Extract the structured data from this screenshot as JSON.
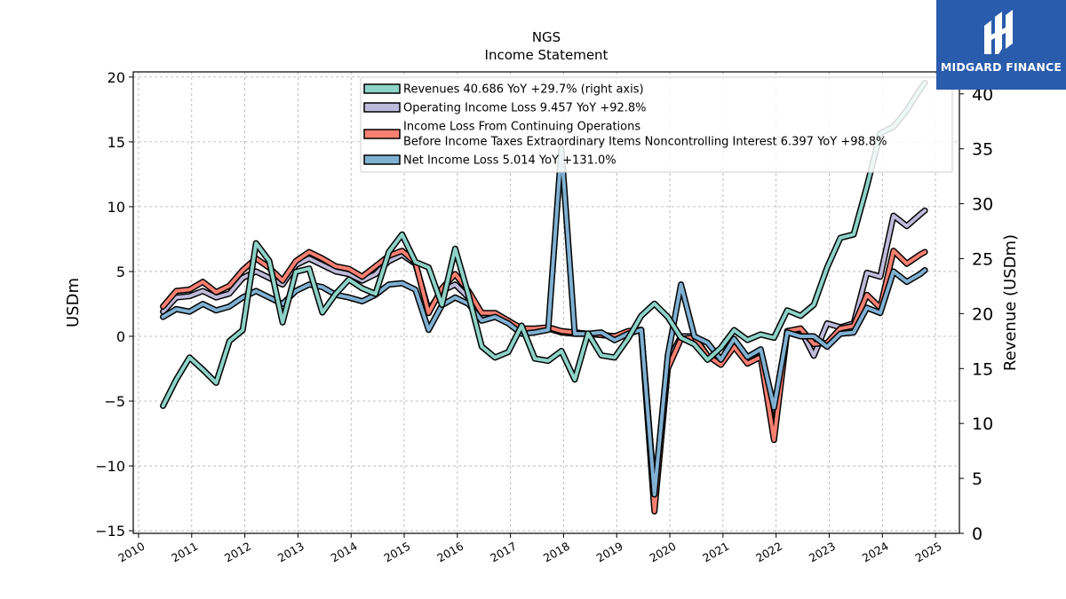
{
  "logo": {
    "text": "MIDGARD FINANCE",
    "bg": "#2a5cad"
  },
  "chart_data": {
    "type": "line",
    "title": "NGS",
    "subtitle": "Income Statement",
    "ylabel": "USDm",
    "ylabel_right": "Revenue (USDm)",
    "ylim": [
      -15.2,
      20.4
    ],
    "ylim_right": [
      0,
      42
    ],
    "xlim": [
      2009.9,
      2025.45
    ],
    "yticks": [
      -15,
      -10,
      -5,
      0,
      5,
      10,
      15,
      20
    ],
    "yticks_right": [
      0,
      5,
      10,
      15,
      20,
      25,
      30,
      35,
      40
    ],
    "xticks": [
      2010,
      2011,
      2012,
      2013,
      2014,
      2015,
      2016,
      2017,
      2018,
      2019,
      2020,
      2021,
      2022,
      2023,
      2024,
      2025
    ],
    "grid": true,
    "legend_position": "top-center",
    "series": [
      {
        "name": "Revenues  40.686 YoY +29.7% (right axis)",
        "axis": "right",
        "color": "#8dd3c7",
        "x": [
          2010.46,
          2010.71,
          2010.96,
          2011.21,
          2011.46,
          2011.71,
          2011.96,
          2012.21,
          2012.46,
          2012.71,
          2012.96,
          2013.21,
          2013.46,
          2013.71,
          2013.96,
          2014.21,
          2014.46,
          2014.71,
          2014.96,
          2015.21,
          2015.46,
          2015.71,
          2015.96,
          2016.21,
          2016.46,
          2016.71,
          2016.96,
          2017.21,
          2017.46,
          2017.71,
          2017.96,
          2018.21,
          2018.46,
          2018.71,
          2018.96,
          2019.21,
          2019.46,
          2019.71,
          2019.96,
          2020.21,
          2020.46,
          2020.71,
          2020.96,
          2021.21,
          2021.46,
          2021.71,
          2021.96,
          2022.21,
          2022.46,
          2022.71,
          2022.96,
          2023.21,
          2023.46,
          2023.71,
          2023.96,
          2024.21,
          2024.46,
          2024.71,
          2024.8
        ],
        "values": [
          11.6,
          14.0,
          16.0,
          14.9,
          13.7,
          17.5,
          18.5,
          26.4,
          24.8,
          19.2,
          23.8,
          24.1,
          20.1,
          21.8,
          23.1,
          22.3,
          21.8,
          25.6,
          27.2,
          24.7,
          24.2,
          20.8,
          25.9,
          21.7,
          17.0,
          16.0,
          16.5,
          18.9,
          15.9,
          15.7,
          16.6,
          14.0,
          18.2,
          16.2,
          16.0,
          17.7,
          19.8,
          20.9,
          19.7,
          17.8,
          17.2,
          15.8,
          16.9,
          18.5,
          17.6,
          18.1,
          17.8,
          20.3,
          19.8,
          20.8,
          24.2,
          26.9,
          27.2,
          31.6,
          36.4,
          37.0,
          38.5,
          40.4,
          41.0
        ]
      },
      {
        "name": "Operating Income Loss  9.457 YoY +92.8%",
        "axis": "left",
        "color": "#bebada",
        "x": [
          2010.46,
          2010.71,
          2010.96,
          2011.21,
          2011.46,
          2011.71,
          2011.96,
          2012.21,
          2012.46,
          2012.71,
          2012.96,
          2013.21,
          2013.46,
          2013.71,
          2013.96,
          2014.21,
          2014.46,
          2014.71,
          2014.96,
          2015.21,
          2015.46,
          2015.71,
          2015.96,
          2016.21,
          2016.46,
          2016.71,
          2016.96,
          2017.21,
          2017.46,
          2017.71,
          2017.96,
          2018.21,
          2018.46,
          2018.71,
          2018.96,
          2019.21,
          2019.46,
          2019.71,
          2019.96,
          2020.21,
          2020.46,
          2020.71,
          2020.96,
          2021.21,
          2021.46,
          2021.71,
          2021.96,
          2022.21,
          2022.46,
          2022.71,
          2022.96,
          2023.21,
          2023.46,
          2023.71,
          2023.96,
          2024.21,
          2024.46,
          2024.71,
          2024.8
        ],
        "values": [
          1.9,
          3.0,
          3.1,
          3.5,
          3.0,
          3.3,
          4.5,
          5.0,
          4.5,
          4.0,
          5.5,
          6.0,
          5.5,
          5.0,
          4.8,
          4.3,
          4.8,
          5.8,
          6.3,
          5.6,
          2.0,
          3.5,
          4.0,
          3.0,
          1.5,
          1.6,
          1.2,
          0.5,
          0.5,
          0.6,
          0.3,
          0.2,
          0.2,
          0.1,
          0.0,
          0.3,
          0.5,
          -12.0,
          -2.0,
          0.0,
          0.0,
          -1.5,
          -2.0,
          -0.5,
          -2.0,
          -1.5,
          -7.5,
          0.4,
          0.5,
          -1.5,
          1.0,
          0.7,
          1.0,
          4.9,
          4.6,
          9.3,
          8.5,
          9.4,
          9.7
        ]
      },
      {
        "name": "Income Loss From Continuing Operations\nBefore Income Taxes Extraordinary Items Noncontrolling Interest  6.397 YoY +98.8%",
        "axis": "left",
        "color": "#fb8072",
        "x": [
          2010.46,
          2010.71,
          2010.96,
          2011.21,
          2011.46,
          2011.71,
          2011.96,
          2012.21,
          2012.46,
          2012.71,
          2012.96,
          2013.21,
          2013.46,
          2013.71,
          2013.96,
          2014.21,
          2014.46,
          2014.71,
          2014.96,
          2015.21,
          2015.46,
          2015.71,
          2015.96,
          2016.21,
          2016.46,
          2016.71,
          2016.96,
          2017.21,
          2017.46,
          2017.71,
          2017.96,
          2018.21,
          2018.46,
          2018.71,
          2018.96,
          2019.21,
          2019.46,
          2019.71,
          2019.96,
          2020.21,
          2020.46,
          2020.71,
          2020.96,
          2021.21,
          2021.46,
          2021.71,
          2021.96,
          2022.21,
          2022.46,
          2022.71,
          2022.96,
          2023.21,
          2023.46,
          2023.71,
          2023.96,
          2024.21,
          2024.46,
          2024.71,
          2024.8
        ],
        "values": [
          2.3,
          3.5,
          3.6,
          4.2,
          3.4,
          3.9,
          5.1,
          6.0,
          5.3,
          4.3,
          5.8,
          6.5,
          6.0,
          5.4,
          5.2,
          4.6,
          5.4,
          6.2,
          6.6,
          5.7,
          1.8,
          3.7,
          4.8,
          3.5,
          1.8,
          1.8,
          1.2,
          0.6,
          0.6,
          0.7,
          0.4,
          0.3,
          0.2,
          0.1,
          0.0,
          0.4,
          0.5,
          -13.5,
          -2.5,
          -0.2,
          -0.1,
          -1.5,
          -2.2,
          -0.8,
          -2.1,
          -1.6,
          -8.0,
          0.4,
          0.6,
          -0.6,
          -0.5,
          0.6,
          0.8,
          3.2,
          2.2,
          6.6,
          5.6,
          6.3,
          6.5
        ]
      },
      {
        "name": "Net Income Loss  5.014 YoY +131.0%",
        "axis": "left",
        "color": "#80b1d3",
        "x": [
          2010.46,
          2010.71,
          2010.96,
          2011.21,
          2011.46,
          2011.71,
          2011.96,
          2012.21,
          2012.46,
          2012.71,
          2012.96,
          2013.21,
          2013.46,
          2013.71,
          2013.96,
          2014.21,
          2014.46,
          2014.71,
          2014.96,
          2015.21,
          2015.46,
          2015.71,
          2015.96,
          2016.21,
          2016.46,
          2016.71,
          2016.96,
          2017.21,
          2017.46,
          2017.71,
          2017.96,
          2018.21,
          2018.46,
          2018.71,
          2018.96,
          2019.21,
          2019.46,
          2019.71,
          2019.96,
          2020.21,
          2020.46,
          2020.71,
          2020.96,
          2021.21,
          2021.46,
          2021.71,
          2021.96,
          2022.21,
          2022.46,
          2022.71,
          2022.96,
          2023.21,
          2023.46,
          2023.71,
          2023.96,
          2024.21,
          2024.46,
          2024.71,
          2024.8
        ],
        "values": [
          1.5,
          2.1,
          1.9,
          2.5,
          2.0,
          2.3,
          3.0,
          3.5,
          3.0,
          2.5,
          3.5,
          4.0,
          3.8,
          3.2,
          3.0,
          2.7,
          3.2,
          4.0,
          4.1,
          3.6,
          0.5,
          2.4,
          3.0,
          2.5,
          1.2,
          1.5,
          1.0,
          0.2,
          0.3,
          0.5,
          14.5,
          0.2,
          0.2,
          0.3,
          -0.3,
          0.2,
          0.5,
          -12.2,
          -1.5,
          4.0,
          0.0,
          -0.5,
          -1.8,
          -0.2,
          -1.6,
          -1.0,
          -5.5,
          0.3,
          0.0,
          0.0,
          -0.8,
          0.2,
          0.3,
          2.2,
          1.8,
          5.0,
          4.2,
          4.8,
          5.1
        ]
      }
    ]
  }
}
